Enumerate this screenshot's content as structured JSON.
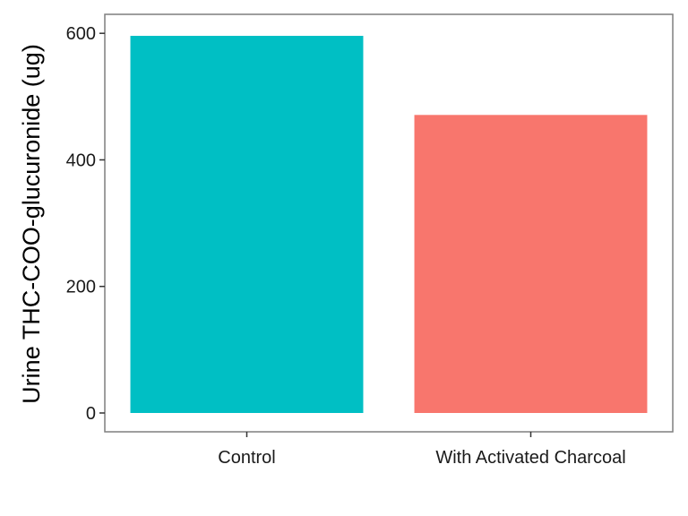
{
  "chart_data": {
    "type": "bar",
    "categories": [
      "Control",
      "With Activated Charcoal"
    ],
    "values": [
      596,
      471
    ],
    "colors": [
      "#00BFC4",
      "#F8766D"
    ],
    "title": "",
    "xlabel": "",
    "ylabel": "Urine THC-COO-glucuronide (ug)",
    "ylim": [
      0,
      630
    ],
    "yticks": [
      0,
      200,
      400,
      600
    ],
    "ytick_labels": [
      "0",
      "200",
      "400",
      "600"
    ],
    "grid": false,
    "legend": "none",
    "panel_border_color": "#7f7f7f"
  }
}
